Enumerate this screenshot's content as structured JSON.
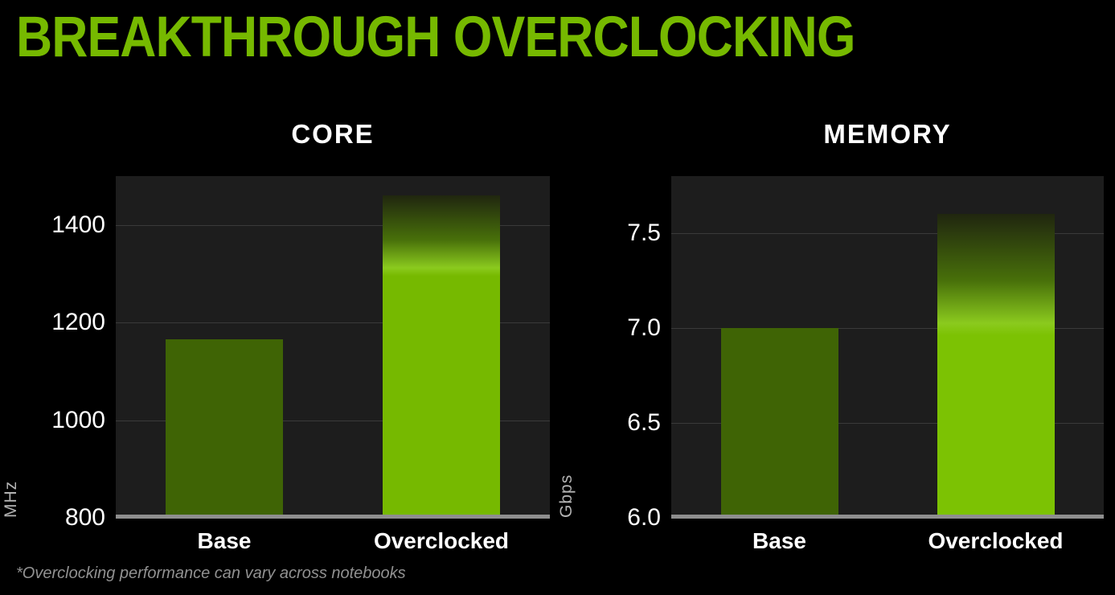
{
  "page_title": "BREAKTHROUGH OVERCLOCKING",
  "footnote": "*Overclocking performance can vary across notebooks",
  "colors": {
    "nvidia_green": "#76b900",
    "panel_bg": "#1d1d1d",
    "gridline": "#3a3a3a",
    "baseline": "#8e8e8e",
    "tick_text": "#ffffff",
    "unit_text": "#b3b3b3",
    "footnote_text": "#919191",
    "fade_top": "#20260f",
    "fade_mid": "#48700a",
    "fade_highlight": "#8bca1e"
  },
  "chart_data": [
    {
      "type": "bar",
      "title": "CORE",
      "xlabel": "",
      "ylabel": "MHz",
      "categories": [
        "Base",
        "Overclocked"
      ],
      "values": [
        1165,
        1460
      ],
      "ylim": [
        800,
        1500
      ],
      "yticks": [
        {
          "value": 800,
          "label": "800"
        },
        {
          "value": 1000,
          "label": "1000"
        },
        {
          "value": 1200,
          "label": "1200"
        },
        {
          "value": 1400,
          "label": "1400"
        }
      ],
      "grid": true,
      "legend": "none",
      "bar_colors": [
        "#3f6405",
        "#76b900"
      ],
      "bar_fade_from_top": [
        0,
        0.25
      ]
    },
    {
      "type": "bar",
      "title": "MEMORY",
      "xlabel": "",
      "ylabel": "Gbps",
      "categories": [
        "Base",
        "Overclocked"
      ],
      "values": [
        7.0,
        7.6
      ],
      "ylim": [
        6.0,
        7.8
      ],
      "yticks": [
        {
          "value": 6.0,
          "label": "6.0"
        },
        {
          "value": 6.5,
          "label": "6.5"
        },
        {
          "value": 7.0,
          "label": "7.0"
        },
        {
          "value": 7.5,
          "label": "7.5"
        }
      ],
      "grid": true,
      "legend": "none",
      "bar_colors": [
        "#3f6405",
        "#7cc203"
      ],
      "bar_fade_from_top": [
        0,
        0.4
      ]
    }
  ]
}
